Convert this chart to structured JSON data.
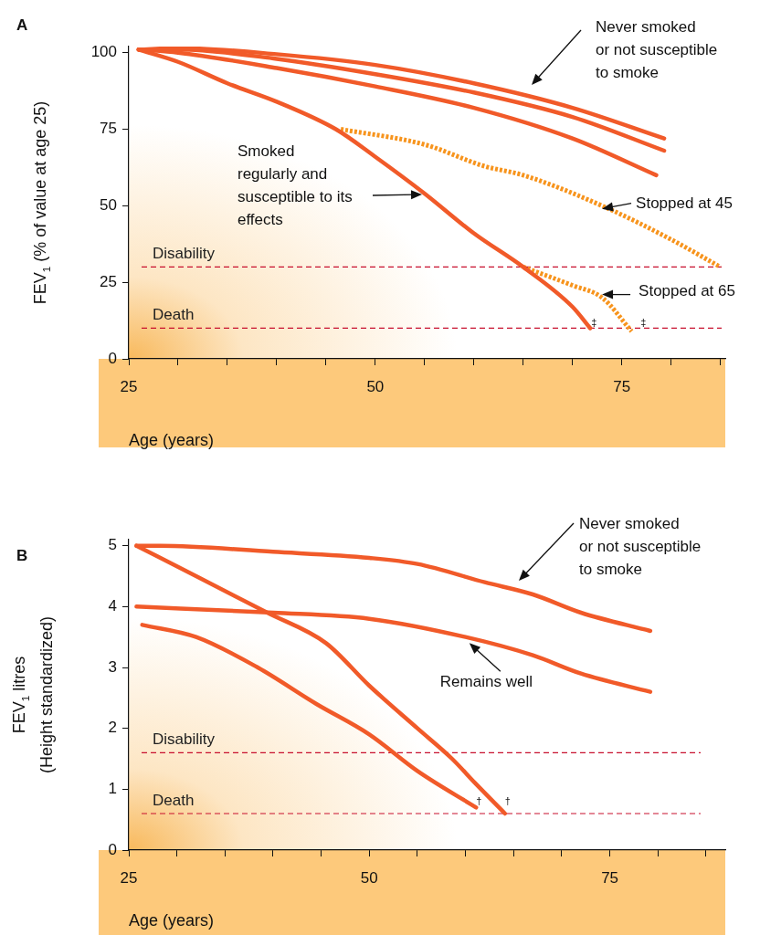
{
  "chart_data": [
    {
      "type": "line",
      "title": "A",
      "ylabel": "FEV$_{1}$ (% of value at age 25)",
      "xlabel": "Age (years)",
      "marker": "none",
      "grid": false,
      "legend": false,
      "xlim": [
        25,
        85.5
      ],
      "xticks": [
        25,
        {
          "value": 30,
          "label": null
        },
        {
          "value": 35,
          "label": null
        },
        {
          "value": 40,
          "label": null
        },
        {
          "value": 45,
          "label": null
        },
        50,
        {
          "value": 55,
          "label": null
        },
        {
          "value": 60,
          "label": null
        },
        {
          "value": 65,
          "label": null
        },
        {
          "value": 70,
          "label": null
        },
        75,
        {
          "value": 80,
          "label": null
        },
        {
          "value": 85,
          "label": null
        }
      ],
      "ylim": [
        0,
        102
      ],
      "yticks": [
        0,
        25,
        50,
        75,
        100
      ],
      "series": [
        {
          "color": "#f15a29",
          "x": [
            26,
            30,
            40,
            50,
            60,
            70,
            79.3
          ],
          "values": [
            101,
            101.5,
            99.5,
            96,
            90,
            82,
            72
          ]
        },
        {
          "color": "#f15a29",
          "x": [
            26,
            30,
            40,
            50,
            60,
            70,
            79.3
          ],
          "values": [
            101,
            101,
            98,
            93,
            87,
            79,
            68
          ]
        },
        {
          "color": "#f15a29",
          "x": [
            26,
            30,
            40,
            50,
            60,
            70,
            78.5
          ],
          "values": [
            101,
            100,
            95,
            89,
            82,
            72,
            60
          ]
        },
        {
          "color": "#f15a29",
          "x": [
            26,
            30,
            35,
            40,
            46,
            50,
            55,
            60,
            65,
            70,
            71.8
          ],
          "values": [
            101,
            97,
            90,
            84,
            75,
            66,
            54,
            41,
            30,
            17,
            10
          ]
        },
        {
          "color": "#f7941d",
          "line_style": "dotted",
          "x": [
            46.5,
            55,
            61,
            65,
            73,
            80,
            85
          ],
          "values": [
            75,
            70,
            63,
            60,
            50,
            39,
            30
          ]
        },
        {
          "color": "#f7941d",
          "line_style": "dotted",
          "x": [
            65,
            70,
            73,
            76
          ],
          "values": [
            30,
            24,
            20,
            9
          ]
        }
      ],
      "ref_lines": [
        {
          "axis": "y",
          "value": 30,
          "label": "Disability",
          "color": "#c8102e",
          "line_style": "dashed"
        },
        {
          "axis": "y",
          "value": 10,
          "label": "Death",
          "color": "#c8102e",
          "line_style": "dashed"
        }
      ],
      "annotations": [
        "Never smoked\nor not susceptible\nto smoke",
        "Smoked\nregularly and\nsusceptible to its\neffects",
        {
          "text": "Stopped at 45",
          "x": 73,
          "y": 49
        },
        {
          "text": "Stopped at 65",
          "x": 73,
          "y": 21
        },
        {
          "text": "‡",
          "x": 72,
          "y": 10
        },
        {
          "text": "‡",
          "x": 77,
          "y": 10
        }
      ]
    },
    {
      "type": "line",
      "title": "B",
      "ylabel": "FEV$_{1}$ litres\n(Height standardized)",
      "xlabel": "Age (years)",
      "marker": "none",
      "grid": false,
      "legend": false,
      "xlim": [
        25,
        87
      ],
      "xticks": [
        25,
        {
          "value": 30,
          "label": null
        },
        {
          "value": 35,
          "label": null
        },
        {
          "value": 40,
          "label": null
        },
        {
          "value": 45,
          "label": null
        },
        50,
        {
          "value": 55,
          "label": null
        },
        {
          "value": 60,
          "label": null
        },
        {
          "value": 65,
          "label": null
        },
        {
          "value": 70,
          "label": null
        },
        75,
        {
          "value": 80,
          "label": null
        },
        {
          "value": 85,
          "label": null
        }
      ],
      "ylim": [
        0,
        5.1
      ],
      "yticks": [
        0,
        1,
        2,
        3,
        4,
        5
      ],
      "series": [
        {
          "color": "#f15a29",
          "x": [
            25.8,
            28.3,
            40,
            50,
            55,
            62,
            67,
            72,
            79.2
          ],
          "values": [
            5,
            5,
            4.9,
            4.8,
            4.7,
            4.4,
            4.2,
            3.9,
            3.6
          ]
        },
        {
          "color": "#f15a29",
          "x": [
            25.8,
            40,
            50,
            60,
            67,
            72,
            79.2
          ],
          "values": [
            4,
            3.9,
            3.8,
            3.5,
            3.2,
            2.9,
            2.6
          ]
        },
        {
          "color": "#f15a29",
          "x": [
            25.8,
            32,
            39.4,
            45.5,
            50,
            55,
            58.6,
            61,
            64.1
          ],
          "values": [
            5,
            4.5,
            3.9,
            3.4,
            2.7,
            2,
            1.5,
            1.1,
            0.6
          ]
        },
        {
          "color": "#f15a29",
          "x": [
            26.4,
            32,
            38.4,
            44.5,
            50,
            55,
            61.1
          ],
          "values": [
            3.7,
            3.5,
            3,
            2.4,
            1.9,
            1.3,
            0.7
          ]
        }
      ],
      "ref_lines": [
        {
          "axis": "y",
          "value": 1.6,
          "label": "Disability",
          "color": "#c8102e",
          "line_style": "dashed"
        },
        {
          "axis": "y",
          "value": 0.6,
          "label": "Death",
          "color": "#c8102e",
          "line_style": "dashed"
        }
      ],
      "annotations": [
        "Never smoked\nor not susceptible\nto smoke",
        {
          "text": "Remains well",
          "x": 60.4,
          "y": 3.4
        },
        {
          "text": "†",
          "x": 61.2,
          "y": 0.7
        },
        {
          "text": "†",
          "x": 64.2,
          "y": 0.7
        }
      ]
    }
  ]
}
